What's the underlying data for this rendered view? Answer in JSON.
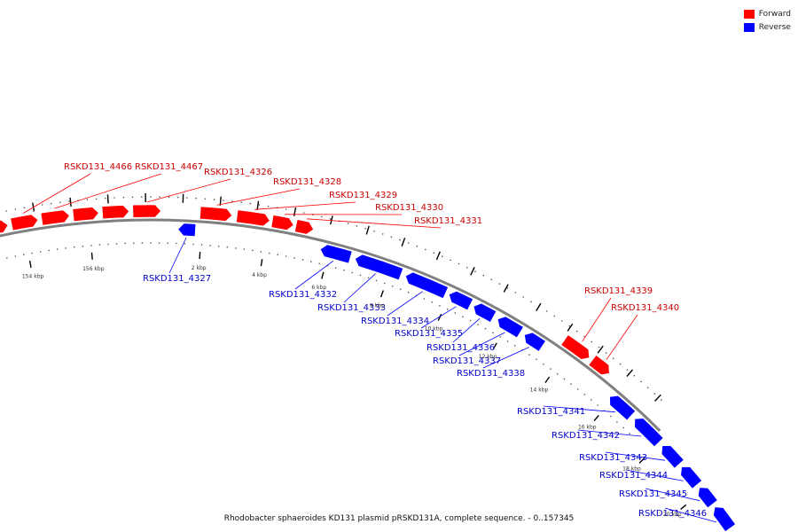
{
  "legend": {
    "forward": {
      "label": "Forward",
      "color": "#ff0000"
    },
    "reverse": {
      "label": "Reverse",
      "color": "#0000ff"
    }
  },
  "caption": "Rhodobacter sphaeroides KD131 plasmid pRSKD131A, complete sequence. - 0..157345",
  "map": {
    "sequence_length": 157345,
    "backbone_color": "#808080",
    "tick_labels": [
      "154 kbp",
      "156 kbp",
      "2 kbp",
      "4 kbp",
      "6 kbp",
      "8 kbp",
      "10 kbp",
      "12 kbp",
      "14 kbp",
      "16 kbp",
      "18 kbp",
      "20 kbp"
    ],
    "genes": [
      {
        "name": "RSKD131_4466",
        "strand": "forward"
      },
      {
        "name": "RSKD131_4467",
        "strand": "forward"
      },
      {
        "name": "RSKD131_4326",
        "strand": "forward"
      },
      {
        "name": "RSKD131_4327",
        "strand": "reverse"
      },
      {
        "name": "RSKD131_4328",
        "strand": "forward"
      },
      {
        "name": "RSKD131_4329",
        "strand": "forward"
      },
      {
        "name": "RSKD131_4330",
        "strand": "forward"
      },
      {
        "name": "RSKD131_4331",
        "strand": "forward"
      },
      {
        "name": "RSKD131_4332",
        "strand": "reverse"
      },
      {
        "name": "RSKD131_4333",
        "strand": "reverse"
      },
      {
        "name": "RSKD131_4334",
        "strand": "reverse"
      },
      {
        "name": "RSKD131_4335",
        "strand": "reverse"
      },
      {
        "name": "RSKD131_4336",
        "strand": "reverse"
      },
      {
        "name": "RSKD131_4337",
        "strand": "reverse"
      },
      {
        "name": "RSKD131_4338",
        "strand": "reverse"
      },
      {
        "name": "RSKD131_4339",
        "strand": "forward"
      },
      {
        "name": "RSKD131_4340",
        "strand": "forward"
      },
      {
        "name": "RSKD131_4341",
        "strand": "reverse"
      },
      {
        "name": "RSKD131_4342",
        "strand": "reverse"
      },
      {
        "name": "RSKD131_4343",
        "strand": "reverse"
      },
      {
        "name": "RSKD131_4344",
        "strand": "reverse"
      },
      {
        "name": "RSKD131_4345",
        "strand": "reverse"
      },
      {
        "name": "RSKD131_4346",
        "strand": "reverse"
      }
    ]
  }
}
